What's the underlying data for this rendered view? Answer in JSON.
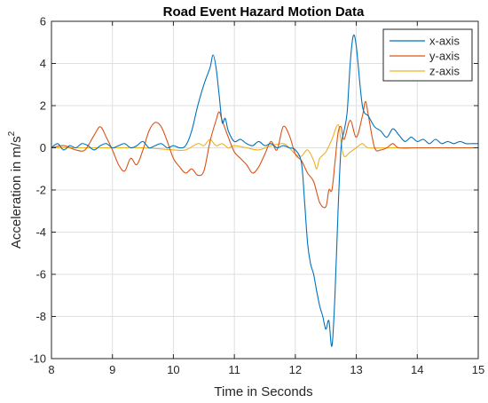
{
  "chart_data": {
    "type": "line",
    "title": "Road Event Hazard Motion Data",
    "xlabel": "Time in Seconds",
    "ylabel": "Acceleration in m/s",
    "ylabel_superscript": "2",
    "xlim": [
      8,
      15
    ],
    "ylim": [
      -10,
      6
    ],
    "xticks": [
      "8",
      "9",
      "10",
      "11",
      "12",
      "13",
      "14",
      "15"
    ],
    "yticks": [
      "-10",
      "-8",
      "-6",
      "-4",
      "-2",
      "0",
      "2",
      "4",
      "6"
    ],
    "grid": true,
    "legend_position": "top-right",
    "series": [
      {
        "name": "x-axis",
        "color": "#0072BD",
        "points": [
          [
            8.0,
            0.0
          ],
          [
            8.1,
            0.2
          ],
          [
            8.2,
            -0.1
          ],
          [
            8.3,
            0.1
          ],
          [
            8.4,
            0.0
          ],
          [
            8.5,
            0.2
          ],
          [
            8.6,
            0.1
          ],
          [
            8.7,
            -0.1
          ],
          [
            8.8,
            0.1
          ],
          [
            8.9,
            0.2
          ],
          [
            9.0,
            0.0
          ],
          [
            9.1,
            0.1
          ],
          [
            9.2,
            0.2
          ],
          [
            9.3,
            0.0
          ],
          [
            9.4,
            0.1
          ],
          [
            9.5,
            0.3
          ],
          [
            9.6,
            0.0
          ],
          [
            9.7,
            0.1
          ],
          [
            9.8,
            0.2
          ],
          [
            9.9,
            0.0
          ],
          [
            10.0,
            0.1
          ],
          [
            10.1,
            0.0
          ],
          [
            10.2,
            0.1
          ],
          [
            10.3,
            0.8
          ],
          [
            10.4,
            2.0
          ],
          [
            10.5,
            3.0
          ],
          [
            10.6,
            3.8
          ],
          [
            10.65,
            4.4
          ],
          [
            10.7,
            3.8
          ],
          [
            10.75,
            2.5
          ],
          [
            10.8,
            1.2
          ],
          [
            10.85,
            1.4
          ],
          [
            10.9,
            0.8
          ],
          [
            11.0,
            0.3
          ],
          [
            11.1,
            0.4
          ],
          [
            11.2,
            0.2
          ],
          [
            11.3,
            0.1
          ],
          [
            11.4,
            0.3
          ],
          [
            11.5,
            0.1
          ],
          [
            11.6,
            0.2
          ],
          [
            11.7,
            0.0
          ],
          [
            11.8,
            0.1
          ],
          [
            11.9,
            0.0
          ],
          [
            12.0,
            -0.1
          ],
          [
            12.1,
            -0.7
          ],
          [
            12.15,
            -2.5
          ],
          [
            12.2,
            -4.5
          ],
          [
            12.25,
            -5.5
          ],
          [
            12.3,
            -6.0
          ],
          [
            12.35,
            -6.8
          ],
          [
            12.4,
            -7.5
          ],
          [
            12.45,
            -8.0
          ],
          [
            12.5,
            -8.6
          ],
          [
            12.55,
            -8.2
          ],
          [
            12.6,
            -9.4
          ],
          [
            12.65,
            -7.0
          ],
          [
            12.7,
            -3.0
          ],
          [
            12.75,
            0.0
          ],
          [
            12.8,
            0.8
          ],
          [
            12.85,
            1.7
          ],
          [
            12.9,
            4.0
          ],
          [
            12.95,
            5.3
          ],
          [
            13.0,
            4.8
          ],
          [
            13.1,
            2.0
          ],
          [
            13.2,
            1.5
          ],
          [
            13.3,
            1.0
          ],
          [
            13.4,
            0.8
          ],
          [
            13.5,
            0.5
          ],
          [
            13.6,
            0.9
          ],
          [
            13.7,
            0.6
          ],
          [
            13.8,
            0.3
          ],
          [
            13.9,
            0.5
          ],
          [
            14.0,
            0.3
          ],
          [
            14.1,
            0.4
          ],
          [
            14.2,
            0.2
          ],
          [
            14.3,
            0.4
          ],
          [
            14.4,
            0.2
          ],
          [
            14.5,
            0.3
          ],
          [
            14.6,
            0.2
          ],
          [
            14.7,
            0.3
          ],
          [
            14.8,
            0.2
          ],
          [
            14.9,
            0.2
          ],
          [
            15.0,
            0.2
          ]
        ]
      },
      {
        "name": "y-axis",
        "color": "#D95319",
        "points": [
          [
            8.0,
            0.0
          ],
          [
            8.2,
            0.1
          ],
          [
            8.4,
            -0.1
          ],
          [
            8.55,
            -0.1
          ],
          [
            8.7,
            0.6
          ],
          [
            8.8,
            1.0
          ],
          [
            8.9,
            0.5
          ],
          [
            9.0,
            -0.1
          ],
          [
            9.1,
            -0.8
          ],
          [
            9.2,
            -1.1
          ],
          [
            9.3,
            -0.5
          ],
          [
            9.4,
            -0.8
          ],
          [
            9.5,
            -0.1
          ],
          [
            9.6,
            0.8
          ],
          [
            9.7,
            1.2
          ],
          [
            9.8,
            1.0
          ],
          [
            9.9,
            0.3
          ],
          [
            10.0,
            -0.5
          ],
          [
            10.1,
            -0.9
          ],
          [
            10.2,
            -1.2
          ],
          [
            10.3,
            -1.0
          ],
          [
            10.4,
            -1.3
          ],
          [
            10.5,
            -1.1
          ],
          [
            10.6,
            0.3
          ],
          [
            10.7,
            1.3
          ],
          [
            10.75,
            1.7
          ],
          [
            10.8,
            1.3
          ],
          [
            10.9,
            0.5
          ],
          [
            11.0,
            -0.2
          ],
          [
            11.1,
            -0.5
          ],
          [
            11.2,
            -0.8
          ],
          [
            11.3,
            -1.2
          ],
          [
            11.4,
            -0.9
          ],
          [
            11.5,
            -0.3
          ],
          [
            11.6,
            0.3
          ],
          [
            11.7,
            -0.1
          ],
          [
            11.8,
            1.0
          ],
          [
            11.9,
            0.6
          ],
          [
            12.0,
            -0.3
          ],
          [
            12.1,
            -0.6
          ],
          [
            12.2,
            -1.2
          ],
          [
            12.3,
            -1.6
          ],
          [
            12.4,
            -2.6
          ],
          [
            12.5,
            -2.8
          ],
          [
            12.55,
            -2.0
          ],
          [
            12.6,
            -2.0
          ],
          [
            12.65,
            -0.7
          ],
          [
            12.7,
            0.7
          ],
          [
            12.75,
            1.0
          ],
          [
            12.8,
            0.4
          ],
          [
            12.9,
            1.3
          ],
          [
            13.0,
            0.5
          ],
          [
            13.1,
            1.5
          ],
          [
            13.15,
            2.2
          ],
          [
            13.2,
            1.5
          ],
          [
            13.3,
            0.0
          ],
          [
            13.4,
            -0.1
          ],
          [
            13.5,
            0.0
          ],
          [
            13.6,
            0.2
          ],
          [
            13.7,
            0.0
          ],
          [
            14.0,
            0.0
          ],
          [
            14.5,
            0.0
          ],
          [
            15.0,
            0.0
          ]
        ]
      },
      {
        "name": "z-axis",
        "color": "#EDB120",
        "points": [
          [
            8.0,
            0.0
          ],
          [
            8.5,
            0.0
          ],
          [
            9.0,
            0.0
          ],
          [
            9.5,
            0.0
          ],
          [
            10.0,
            -0.1
          ],
          [
            10.2,
            -0.1
          ],
          [
            10.4,
            0.2
          ],
          [
            10.5,
            0.1
          ],
          [
            10.6,
            0.4
          ],
          [
            10.7,
            0.1
          ],
          [
            10.8,
            0.2
          ],
          [
            10.9,
            0.0
          ],
          [
            11.0,
            0.1
          ],
          [
            11.2,
            0.0
          ],
          [
            11.4,
            -0.1
          ],
          [
            11.6,
            0.1
          ],
          [
            11.8,
            0.2
          ],
          [
            11.9,
            0.0
          ],
          [
            12.0,
            -0.3
          ],
          [
            12.1,
            -0.4
          ],
          [
            12.2,
            -0.1
          ],
          [
            12.3,
            -0.6
          ],
          [
            12.35,
            -1.0
          ],
          [
            12.4,
            -0.5
          ],
          [
            12.5,
            -0.2
          ],
          [
            12.6,
            0.4
          ],
          [
            12.7,
            1.1
          ],
          [
            12.75,
            0.3
          ],
          [
            12.8,
            -0.4
          ],
          [
            12.9,
            -0.2
          ],
          [
            13.0,
            0.0
          ],
          [
            13.1,
            0.2
          ],
          [
            13.2,
            0.0
          ],
          [
            13.5,
            0.0
          ],
          [
            14.0,
            0.0
          ],
          [
            14.5,
            0.0
          ],
          [
            15.0,
            0.0
          ]
        ]
      }
    ]
  }
}
